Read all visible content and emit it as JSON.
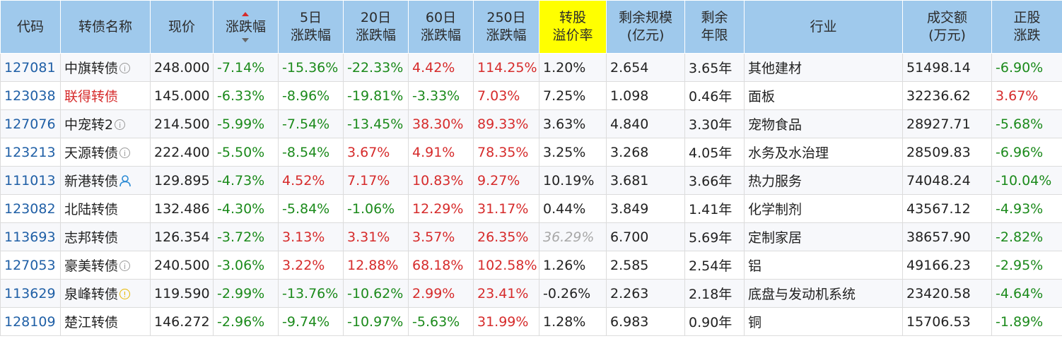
{
  "columns": [
    "代码",
    "转债名称",
    "现价",
    "涨跌幅",
    "5日\n涨跌幅",
    "20日\n涨跌幅",
    "60日\n涨跌幅",
    "250日\n涨跌幅",
    "转股\n溢价率",
    "剩余规模\n(亿元)",
    "剩余\n年限",
    "行业",
    "成交额\n(万元)",
    "正股\n涨跌"
  ],
  "highlight_color": "#ffff00",
  "header_color": "#9fc9ec",
  "rows": [
    {
      "code": "127081",
      "name": "中旗转债",
      "name_color": "normal",
      "icon": "info-icon",
      "price": "248.000",
      "chg": "-7.14%",
      "chg_color": "green",
      "d5": "-15.36%",
      "d5_color": "green",
      "d20": "-22.33%",
      "d20_color": "green",
      "d60": "4.42%",
      "d60_color": "red",
      "d250": "114.25%",
      "d250_color": "red",
      "premium": "1.20%",
      "premium_style": "normal",
      "scale": "2.654",
      "years": "3.65年",
      "industry": "其他建材",
      "volume": "51498.14",
      "stock_chg": "-6.90%",
      "stock_color": "green"
    },
    {
      "code": "123038",
      "name": "联得转债",
      "name_color": "red",
      "icon": "",
      "price": "145.000",
      "chg": "-6.33%",
      "chg_color": "green",
      "d5": "-8.96%",
      "d5_color": "green",
      "d20": "-19.81%",
      "d20_color": "green",
      "d60": "-3.33%",
      "d60_color": "green",
      "d250": "7.03%",
      "d250_color": "red",
      "premium": "7.25%",
      "premium_style": "normal",
      "scale": "1.098",
      "years": "0.46年",
      "industry": "面板",
      "volume": "32236.62",
      "stock_chg": "3.67%",
      "stock_color": "red"
    },
    {
      "code": "127076",
      "name": "中宠转2",
      "name_color": "normal",
      "icon": "info-icon",
      "price": "214.500",
      "chg": "-5.99%",
      "chg_color": "green",
      "d5": "-7.54%",
      "d5_color": "green",
      "d20": "-13.45%",
      "d20_color": "green",
      "d60": "38.30%",
      "d60_color": "red",
      "d250": "89.33%",
      "d250_color": "red",
      "premium": "3.63%",
      "premium_style": "normal",
      "scale": "4.840",
      "years": "3.30年",
      "industry": "宠物食品",
      "volume": "28927.71",
      "stock_chg": "-5.68%",
      "stock_color": "green"
    },
    {
      "code": "123213",
      "name": "天源转债",
      "name_color": "normal",
      "icon": "info-icon",
      "price": "222.400",
      "chg": "-5.50%",
      "chg_color": "green",
      "d5": "-8.54%",
      "d5_color": "green",
      "d20": "3.67%",
      "d20_color": "red",
      "d60": "4.91%",
      "d60_color": "red",
      "d250": "78.35%",
      "d250_color": "red",
      "premium": "3.25%",
      "premium_style": "normal",
      "scale": "3.268",
      "years": "4.05年",
      "industry": "水务及水治理",
      "volume": "28509.83",
      "stock_chg": "-6.96%",
      "stock_color": "green"
    },
    {
      "code": "111013",
      "name": "新港转债",
      "name_color": "normal",
      "icon": "user-icon",
      "price": "129.895",
      "chg": "-4.73%",
      "chg_color": "green",
      "d5": "4.52%",
      "d5_color": "red",
      "d20": "7.17%",
      "d20_color": "red",
      "d60": "10.83%",
      "d60_color": "red",
      "d250": "9.27%",
      "d250_color": "red",
      "premium": "10.19%",
      "premium_style": "normal",
      "scale": "3.681",
      "years": "3.66年",
      "industry": "热力服务",
      "volume": "74048.24",
      "stock_chg": "-10.04%",
      "stock_color": "green"
    },
    {
      "code": "123082",
      "name": "北陆转债",
      "name_color": "normal",
      "icon": "",
      "price": "132.486",
      "chg": "-4.30%",
      "chg_color": "green",
      "d5": "-5.84%",
      "d5_color": "green",
      "d20": "-1.06%",
      "d20_color": "green",
      "d60": "12.29%",
      "d60_color": "red",
      "d250": "31.17%",
      "d250_color": "red",
      "premium": "0.44%",
      "premium_style": "normal",
      "scale": "3.849",
      "years": "1.41年",
      "industry": "化学制剂",
      "volume": "43567.12",
      "stock_chg": "-4.93%",
      "stock_color": "green"
    },
    {
      "code": "113693",
      "name": "志邦转债",
      "name_color": "normal",
      "icon": "",
      "price": "126.354",
      "chg": "-3.72%",
      "chg_color": "green",
      "d5": "3.13%",
      "d5_color": "red",
      "d20": "3.31%",
      "d20_color": "red",
      "d60": "3.57%",
      "d60_color": "red",
      "d250": "26.35%",
      "d250_color": "red",
      "premium": "36.29%",
      "premium_style": "muted",
      "scale": "6.700",
      "years": "5.69年",
      "industry": "定制家居",
      "volume": "38657.90",
      "stock_chg": "-2.82%",
      "stock_color": "green"
    },
    {
      "code": "127053",
      "name": "豪美转债",
      "name_color": "normal",
      "icon": "info-icon",
      "price": "240.500",
      "chg": "-3.06%",
      "chg_color": "green",
      "d5": "3.22%",
      "d5_color": "red",
      "d20": "12.88%",
      "d20_color": "red",
      "d60": "68.18%",
      "d60_color": "red",
      "d250": "102.58%",
      "d250_color": "red",
      "premium": "1.26%",
      "premium_style": "normal",
      "scale": "2.585",
      "years": "2.54年",
      "industry": "铝",
      "volume": "49166.23",
      "stock_chg": "-2.95%",
      "stock_color": "green"
    },
    {
      "code": "113629",
      "name": "泉峰转债",
      "name_color": "normal",
      "icon": "warn-icon",
      "price": "119.590",
      "chg": "-2.99%",
      "chg_color": "green",
      "d5": "-13.76%",
      "d5_color": "green",
      "d20": "-10.62%",
      "d20_color": "green",
      "d60": "2.99%",
      "d60_color": "red",
      "d250": "23.41%",
      "d250_color": "red",
      "premium": "-0.26%",
      "premium_style": "normal",
      "scale": "2.263",
      "years": "2.18年",
      "industry": "底盘与发动机系统",
      "volume": "23420.58",
      "stock_chg": "-4.64%",
      "stock_color": "green"
    },
    {
      "code": "128109",
      "name": "楚江转债",
      "name_color": "normal",
      "icon": "",
      "price": "146.272",
      "chg": "-2.96%",
      "chg_color": "green",
      "d5": "-9.74%",
      "d5_color": "green",
      "d20": "-10.97%",
      "d20_color": "green",
      "d60": "-5.63%",
      "d60_color": "green",
      "d250": "31.99%",
      "d250_color": "red",
      "premium": "1.28%",
      "premium_style": "normal",
      "scale": "6.983",
      "years": "0.90年",
      "industry": "铜",
      "volume": "15706.53",
      "stock_chg": "-1.89%",
      "stock_color": "green"
    }
  ]
}
